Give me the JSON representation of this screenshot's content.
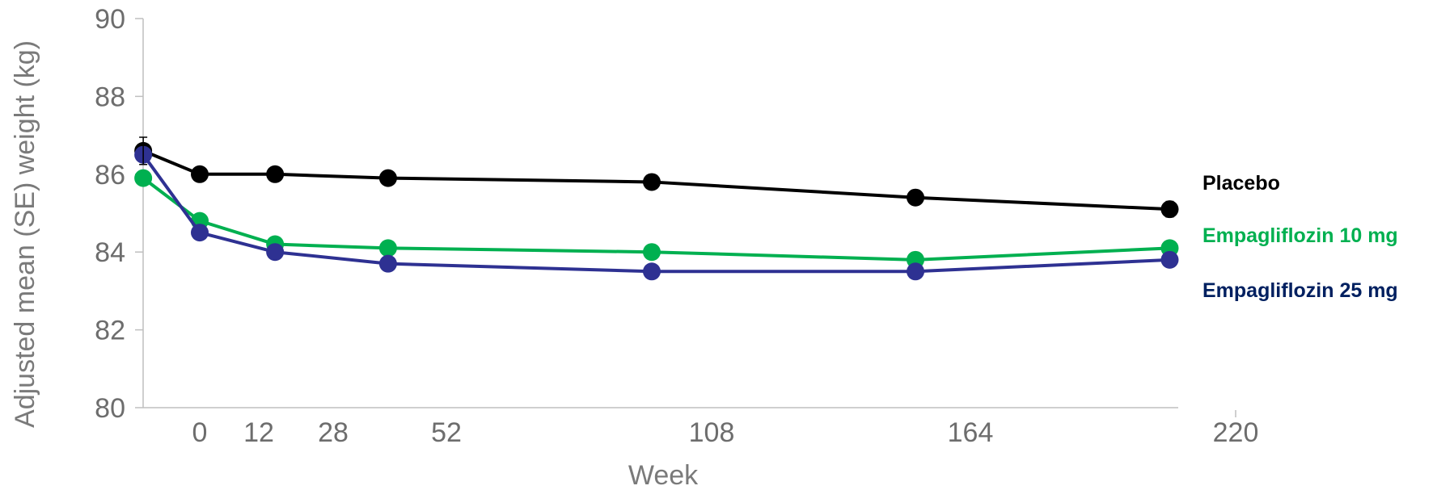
{
  "chart_data": {
    "type": "line",
    "xlabel": "Week",
    "ylabel": "Adjusted mean (SE) weight (kg)",
    "ylim": [
      80,
      90
    ],
    "yticks": [
      80,
      82,
      84,
      86,
      88,
      90
    ],
    "xticks": [
      "0",
      "12",
      "28",
      "52",
      "108",
      "164",
      "220"
    ],
    "grid": false,
    "legend": "inline-right",
    "x": [
      -12,
      0,
      16,
      40,
      96,
      152,
      206
    ],
    "series": [
      {
        "name": "Placebo",
        "color": "#000000",
        "values": [
          86.6,
          86.0,
          86.0,
          85.9,
          85.8,
          85.4,
          85.1
        ]
      },
      {
        "name": "Empagliflozin 10 mg",
        "color": "#00b050",
        "values": [
          85.9,
          84.8,
          84.2,
          84.1,
          84.0,
          83.8,
          84.1
        ]
      },
      {
        "name": "Empagliflozin 25 mg",
        "color": "#2e3192",
        "values": [
          86.5,
          84.5,
          84.0,
          83.7,
          83.5,
          83.5,
          83.8
        ]
      }
    ]
  }
}
